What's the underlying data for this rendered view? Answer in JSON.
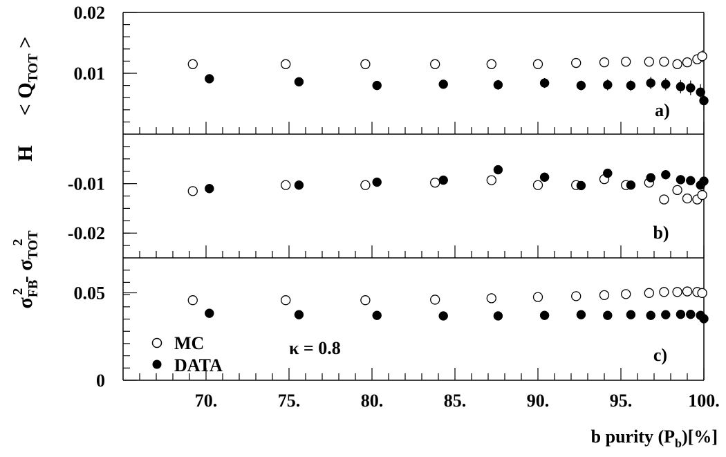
{
  "chart_data": {
    "type": "scatter",
    "x_axis": {
      "range": [
        65,
        100
      ],
      "tick_labels": [
        "70.",
        "75.",
        "80.",
        "85.",
        "90.",
        "95.",
        "100."
      ],
      "tick_values": [
        70,
        75,
        80,
        85,
        90,
        95,
        100
      ],
      "label_main": "b purity (P",
      "label_sub": "b",
      "label_end": ")[%]"
    },
    "kappa_label": "κ = 0.8",
    "legend": {
      "placement": "bottom-left",
      "entries": [
        {
          "name": "MC",
          "marker": "open-circle"
        },
        {
          "name": "DATA",
          "marker": "filled-circle"
        }
      ]
    },
    "panels": [
      {
        "id": "a",
        "label": "a)",
        "y_title_main": "< Q",
        "y_title_sub": "TOT",
        "y_title_end": " >",
        "ylim": [
          0,
          0.02
        ],
        "y_ticks": [
          {
            "value": 0.01,
            "label": "0.01"
          },
          {
            "value": 0.02,
            "label": "0.02"
          }
        ],
        "series": [
          {
            "name": "MC",
            "x": [
              69.2,
              74.8,
              79.6,
              83.8,
              87.2,
              90.0,
              92.3,
              94.0,
              95.3,
              96.7,
              97.6,
              98.4,
              99.0,
              99.6,
              99.9
            ],
            "y": [
              0.0115,
              0.0115,
              0.0115,
              0.0115,
              0.0115,
              0.0115,
              0.0117,
              0.0118,
              0.0119,
              0.0119,
              0.0119,
              0.0115,
              0.0118,
              0.0123,
              0.0128
            ],
            "err": [
              0,
              0,
              0,
              0,
              0,
              0,
              0,
              0,
              0,
              0,
              0,
              0,
              0,
              0.0008,
              0.001
            ]
          },
          {
            "name": "DATA",
            "x": [
              70.2,
              75.6,
              80.3,
              84.3,
              87.6,
              90.4,
              92.6,
              94.2,
              95.6,
              96.8,
              97.7,
              98.6,
              99.2,
              99.8,
              100.0
            ],
            "y": [
              0.0091,
              0.0086,
              0.008,
              0.0082,
              0.0081,
              0.0084,
              0.008,
              0.0081,
              0.008,
              0.0084,
              0.0082,
              0.0078,
              0.0076,
              0.0069,
              0.0055
            ],
            "err": [
              0.0005,
              0.0006,
              0.0006,
              0.0007,
              0.0008,
              0.0008,
              0.0008,
              0.0009,
              0.0009,
              0.001,
              0.001,
              0.0011,
              0.0012,
              0.0013,
              0.0015
            ]
          }
        ]
      },
      {
        "id": "b",
        "label": "b)",
        "y_title_main": "H",
        "ylim": [
          -0.025,
          0.0
        ],
        "y_ticks": [
          {
            "value": -0.01,
            "label": "-0.01"
          },
          {
            "value": -0.02,
            "label": "-0.02"
          }
        ],
        "series": [
          {
            "name": "MC",
            "x": [
              69.2,
              74.8,
              79.6,
              83.8,
              87.2,
              90.0,
              92.3,
              94.0,
              95.3,
              96.7,
              97.6,
              98.4,
              99.0,
              99.6,
              99.9
            ],
            "y": [
              -0.0115,
              -0.0103,
              -0.0103,
              -0.0098,
              -0.0093,
              -0.0103,
              -0.0103,
              -0.0091,
              -0.0103,
              -0.0098,
              -0.0132,
              -0.0113,
              -0.013,
              -0.0132,
              -0.0123
            ]
          },
          {
            "name": "DATA",
            "x": [
              70.2,
              75.6,
              80.3,
              84.3,
              87.6,
              90.4,
              92.6,
              94.2,
              95.6,
              96.8,
              97.7,
              98.6,
              99.2,
              99.8,
              100.0
            ],
            "y": [
              -0.011,
              -0.0103,
              -0.0097,
              -0.0093,
              -0.0072,
              -0.0087,
              -0.0104,
              -0.0079,
              -0.0103,
              -0.0088,
              -0.0082,
              -0.0092,
              -0.0094,
              -0.0103,
              -0.0095
            ]
          }
        ]
      },
      {
        "id": "c",
        "label": "c)",
        "y_title_main": "σ",
        "y_title_parts": [
          "σ",
          "FB",
          "2",
          " - σ",
          "TOT",
          "2"
        ],
        "ylim": [
          0,
          0.07
        ],
        "y_ticks": [
          {
            "value": 0,
            "label": "0"
          },
          {
            "value": 0.05,
            "label": "0.05"
          }
        ],
        "series": [
          {
            "name": "MC",
            "x": [
              69.2,
              74.8,
              79.6,
              83.8,
              87.2,
              90.0,
              92.3,
              94.0,
              95.3,
              96.7,
              97.6,
              98.4,
              99.0,
              99.6,
              99.9
            ],
            "y": [
              0.0458,
              0.0458,
              0.0458,
              0.0461,
              0.0469,
              0.0476,
              0.0481,
              0.0487,
              0.0493,
              0.0499,
              0.0505,
              0.0505,
              0.0508,
              0.0505,
              0.0499
            ]
          },
          {
            "name": "DATA",
            "x": [
              70.2,
              75.6,
              80.3,
              84.3,
              87.6,
              90.4,
              92.6,
              94.2,
              95.6,
              96.8,
              97.7,
              98.6,
              99.2,
              99.8,
              100.0
            ],
            "y": [
              0.0383,
              0.0375,
              0.0371,
              0.0368,
              0.0368,
              0.0371,
              0.0375,
              0.0371,
              0.0375,
              0.0371,
              0.0375,
              0.0377,
              0.0377,
              0.0371,
              0.0352
            ]
          }
        ]
      }
    ]
  }
}
